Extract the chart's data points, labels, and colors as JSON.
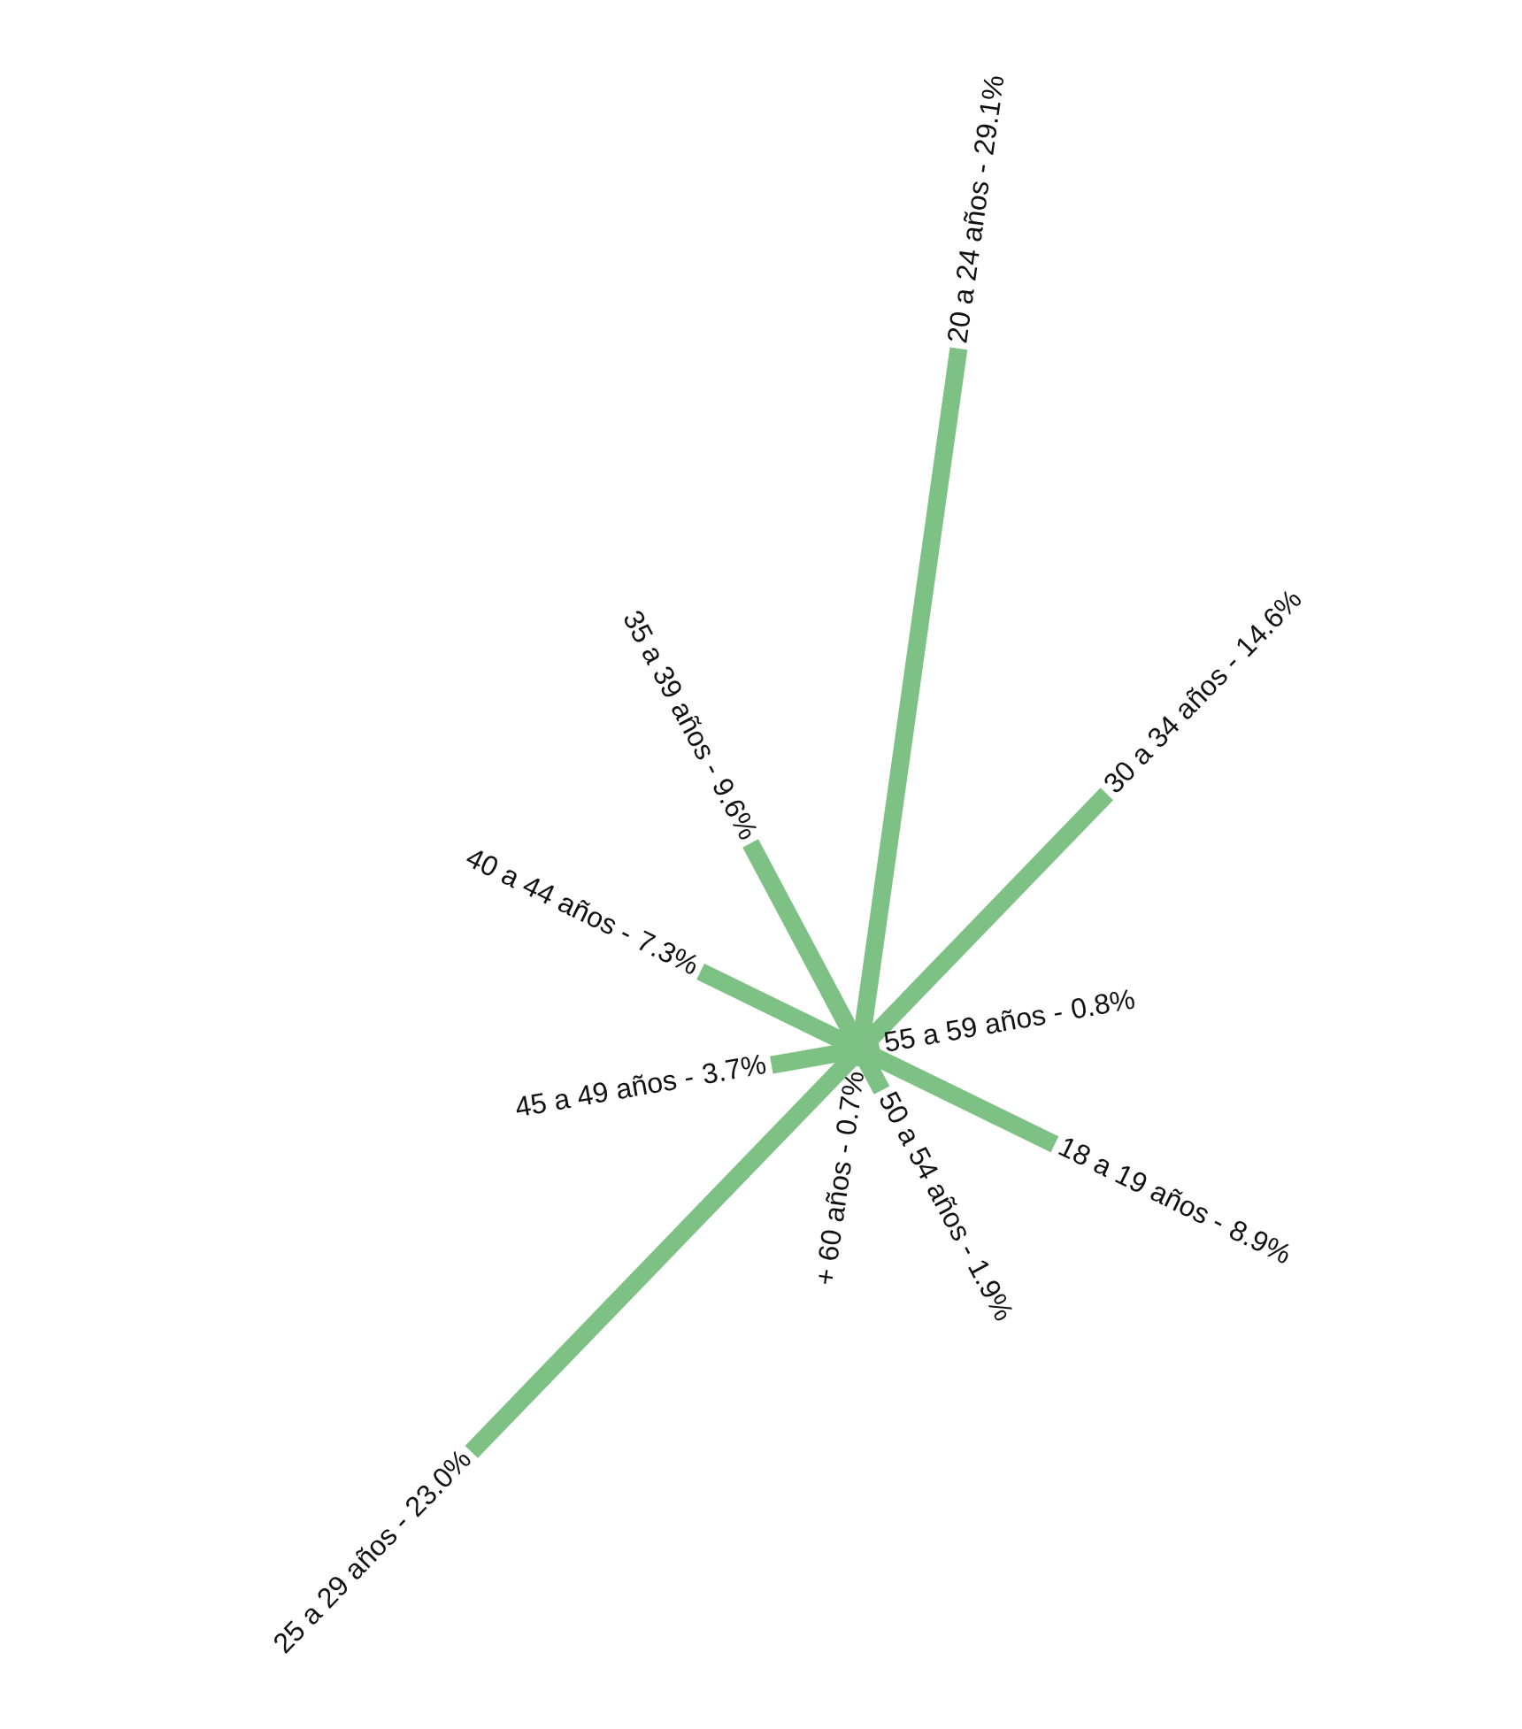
{
  "chart_data": {
    "type": "other",
    "categories": [
      "20 a 24 años -",
      "30 a 34 años -",
      "55 a 59 años -",
      "18 a 19 años -",
      "50 a 54 años -",
      "+ 60 años -",
      "25 a 29 años -",
      "45 a 49 años -",
      "40 a 44 años -",
      "35 a 39 años -"
    ],
    "values": [
      29.1,
      14.6,
      0.8,
      8.9,
      1.9,
      0.7,
      23.0,
      3.7,
      7.3,
      9.6
    ],
    "value_labels": [
      "29.1%",
      "14.6%",
      "0.8%",
      "8.9%",
      "1.9%",
      "0.7%",
      "23.0%",
      "3.7%",
      "7.3%",
      "9.6%"
    ],
    "color": "#7dc185"
  }
}
